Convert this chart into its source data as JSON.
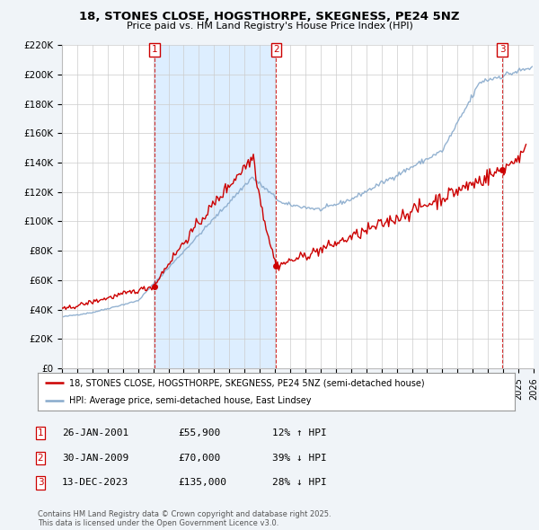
{
  "title": "18, STONES CLOSE, HOGSTHORPE, SKEGNESS, PE24 5NZ",
  "subtitle": "Price paid vs. HM Land Registry's House Price Index (HPI)",
  "x_start": 1995.0,
  "x_end": 2026.0,
  "y_min": 0,
  "y_max": 220000,
  "y_ticks": [
    0,
    20000,
    40000,
    60000,
    80000,
    100000,
    120000,
    140000,
    160000,
    180000,
    200000,
    220000
  ],
  "y_tick_labels": [
    "£0",
    "£20K",
    "£40K",
    "£60K",
    "£80K",
    "£100K",
    "£120K",
    "£140K",
    "£160K",
    "£180K",
    "£200K",
    "£220K"
  ],
  "x_ticks": [
    1995,
    1996,
    1997,
    1998,
    1999,
    2000,
    2001,
    2002,
    2003,
    2004,
    2005,
    2006,
    2007,
    2008,
    2009,
    2010,
    2011,
    2012,
    2013,
    2014,
    2015,
    2016,
    2017,
    2018,
    2019,
    2020,
    2021,
    2022,
    2023,
    2024,
    2025,
    2026
  ],
  "sale_dates": [
    2001.07,
    2009.08,
    2023.95
  ],
  "sale_prices": [
    55900,
    70000,
    135000
  ],
  "sale_labels": [
    "1",
    "2",
    "3"
  ],
  "property_color": "#cc0000",
  "hpi_color": "#88aacc",
  "shade_color": "#ddeeff",
  "background_color": "#f0f4f8",
  "plot_bg_color": "#ffffff",
  "legend_label_property": "18, STONES CLOSE, HOGSTHORPE, SKEGNESS, PE24 5NZ (semi-detached house)",
  "legend_label_hpi": "HPI: Average price, semi-detached house, East Lindsey",
  "table_rows": [
    [
      "1",
      "26-JAN-2001",
      "£55,900",
      "12% ↑ HPI"
    ],
    [
      "2",
      "30-JAN-2009",
      "£70,000",
      "39% ↓ HPI"
    ],
    [
      "3",
      "13-DEC-2023",
      "£135,000",
      "28% ↓ HPI"
    ]
  ],
  "footnote": "Contains HM Land Registry data © Crown copyright and database right 2025.\nThis data is licensed under the Open Government Licence v3.0.",
  "dashed_line_dates": [
    2001.07,
    2009.08,
    2023.95
  ]
}
